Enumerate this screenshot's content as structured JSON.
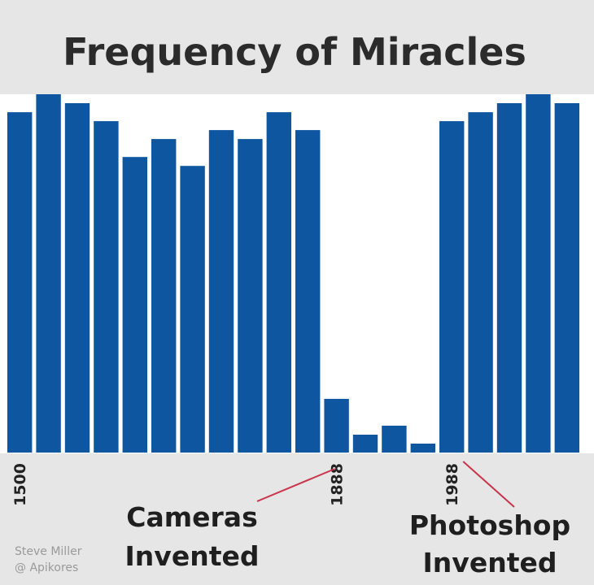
{
  "chart_data": {
    "type": "bar",
    "title": "Frequency of Miracles",
    "xlabel": "",
    "ylabel": "",
    "ylim": [
      0,
      100
    ],
    "categories": [
      "1500",
      "",
      "",
      "",
      "",
      "",
      "",
      "",
      "",
      "",
      "",
      "1888",
      "",
      "",
      "",
      "1988",
      "",
      "",
      "",
      ""
    ],
    "values": [
      95,
      100,
      97.5,
      92.5,
      82.5,
      87.5,
      80,
      90,
      87.5,
      95,
      90,
      15,
      5,
      7.5,
      2.5,
      92.5,
      95,
      97.5,
      100,
      97.5
    ],
    "annotations": [
      {
        "text_lines": [
          "Cameras",
          "Invented"
        ],
        "points_to": "1888"
      },
      {
        "text_lines": [
          "Photoshop",
          "Invented"
        ],
        "points_to": "1988"
      }
    ],
    "grid": false,
    "legend": "none"
  },
  "credit": {
    "line1": "Steve Miller",
    "line2": "@ Apikores"
  },
  "colors": {
    "bar": "#0f56a0",
    "plot_background": "#ffffff",
    "page_background": "#e6e6e6",
    "annotation_line": "#c8344b"
  }
}
